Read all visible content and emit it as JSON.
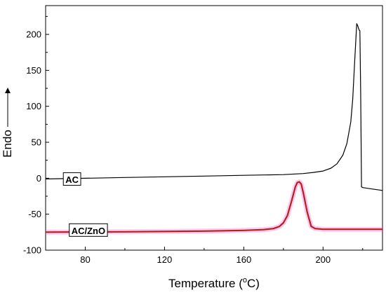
{
  "chart_data": {
    "type": "line",
    "title": "",
    "xlabel": "Temperature (",
    "xlabel_unit_sup": "o",
    "xlabel_unit": "C)",
    "ylabel": "Endo",
    "xlim": [
      60,
      230
    ],
    "ylim": [
      -100,
      240
    ],
    "xticks": [
      80,
      120,
      160,
      200
    ],
    "yticks": [
      -100,
      -50,
      0,
      50,
      100,
      150,
      200
    ],
    "grid": false,
    "series": [
      {
        "name": "AC",
        "color": "#000000",
        "x": [
          60,
          80,
          100,
          120,
          140,
          160,
          180,
          190,
          195,
          200,
          204,
          207,
          210,
          212,
          214,
          215,
          216,
          217,
          217.5,
          218.2,
          218.6,
          219.0,
          219.4,
          220,
          225,
          230
        ],
        "y": [
          -1,
          0,
          1,
          2,
          3,
          4,
          5,
          6.5,
          8,
          10,
          14,
          20,
          32,
          48,
          78,
          110,
          165,
          215,
          212,
          206,
          205,
          120,
          -12,
          -13,
          -15,
          -17
        ]
      },
      {
        "name": "AC/ZnO",
        "color": "#b22222",
        "highlight": "#ff66cc",
        "x": [
          60,
          100,
          140,
          160,
          170,
          175,
          178,
          180,
          182,
          184,
          186,
          187,
          188,
          189,
          190,
          192,
          194,
          196,
          200,
          210,
          230
        ],
        "y": [
          -75,
          -74.5,
          -73.5,
          -72.5,
          -71.5,
          -70,
          -67,
          -62,
          -52,
          -33,
          -12,
          -6,
          -5,
          -8,
          -20,
          -47,
          -67,
          -70,
          -71,
          -71,
          -71
        ]
      }
    ],
    "annotations": [
      {
        "text": "AC",
        "x": 70,
        "y": -3
      },
      {
        "text": "AC/ZnO",
        "x": 73,
        "y": -74
      }
    ]
  }
}
